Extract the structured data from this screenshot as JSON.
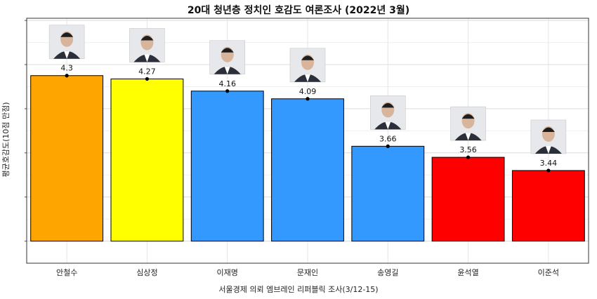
{
  "chart_data": {
    "type": "bar",
    "title": "20대 청년층 정치인 호감도 여론조사 (2022년 3월)",
    "xlabel": "서울경제 의뢰 엠브레인 리퍼블릭 조사(3/12-15)",
    "ylabel": "평균호감도(10점 만점)",
    "ylim": [
      2.6,
      4.82
    ],
    "grid": true,
    "categories": [
      "안철수",
      "심상정",
      "이재명",
      "문재인",
      "송영길",
      "윤석열",
      "이준석"
    ],
    "values": [
      4.3,
      4.27,
      4.16,
      4.09,
      3.66,
      3.56,
      3.44
    ],
    "value_labels": [
      "4.3",
      "4.27",
      "4.16",
      "4.09",
      "3.66",
      "3.56",
      "3.44"
    ],
    "bar_colors": [
      "#FFA500",
      "#FFFF00",
      "#3399FF",
      "#3399FF",
      "#3399FF",
      "#FF0000",
      "#FF0000"
    ],
    "portrait_icons": [
      "portrait-icon",
      "portrait-icon",
      "portrait-icon",
      "portrait-icon",
      "portrait-icon",
      "portrait-icon",
      "portrait-icon"
    ]
  }
}
